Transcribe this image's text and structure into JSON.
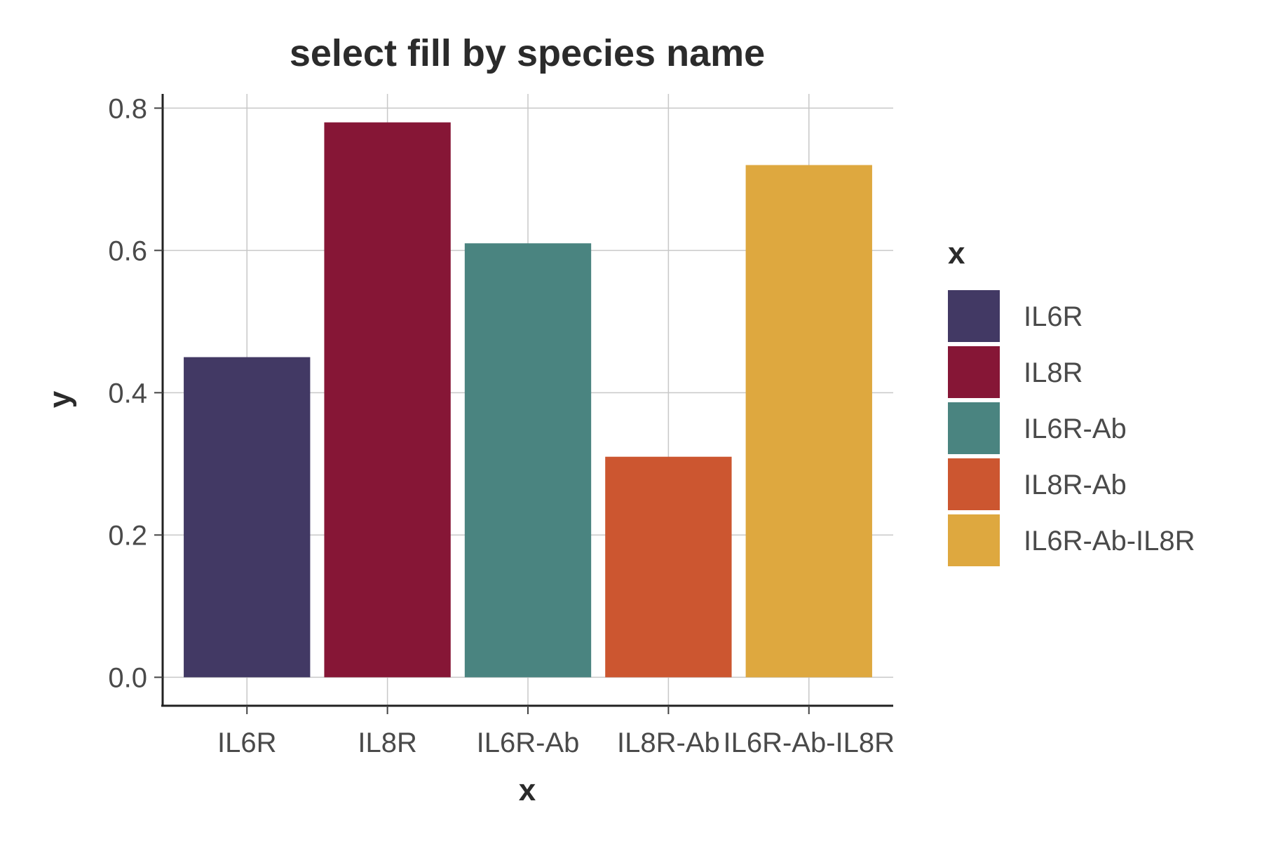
{
  "chart_data": {
    "type": "bar",
    "title": "select fill by species name",
    "xlabel": "x",
    "ylabel": "y",
    "categories": [
      "IL6R",
      "IL8R",
      "IL6R-Ab",
      "IL8R-Ab",
      "IL6R-Ab-IL8R"
    ],
    "values": [
      0.45,
      0.78,
      0.61,
      0.31,
      0.72
    ],
    "colors": [
      "#423964",
      "#861636",
      "#4a8480",
      "#cc5630",
      "#dea83f"
    ],
    "ylim": [
      -0.04,
      0.82
    ],
    "yticks": [
      0.0,
      0.2,
      0.4,
      0.6,
      0.8
    ],
    "ytick_labels": [
      "0.0",
      "0.2",
      "0.4",
      "0.6",
      "0.8"
    ],
    "grid": true,
    "legend": {
      "title": "x",
      "placement": "right",
      "entries": [
        "IL6R",
        "IL8R",
        "IL6R-Ab",
        "IL8R-Ab",
        "IL6R-Ab-IL8R"
      ]
    }
  }
}
